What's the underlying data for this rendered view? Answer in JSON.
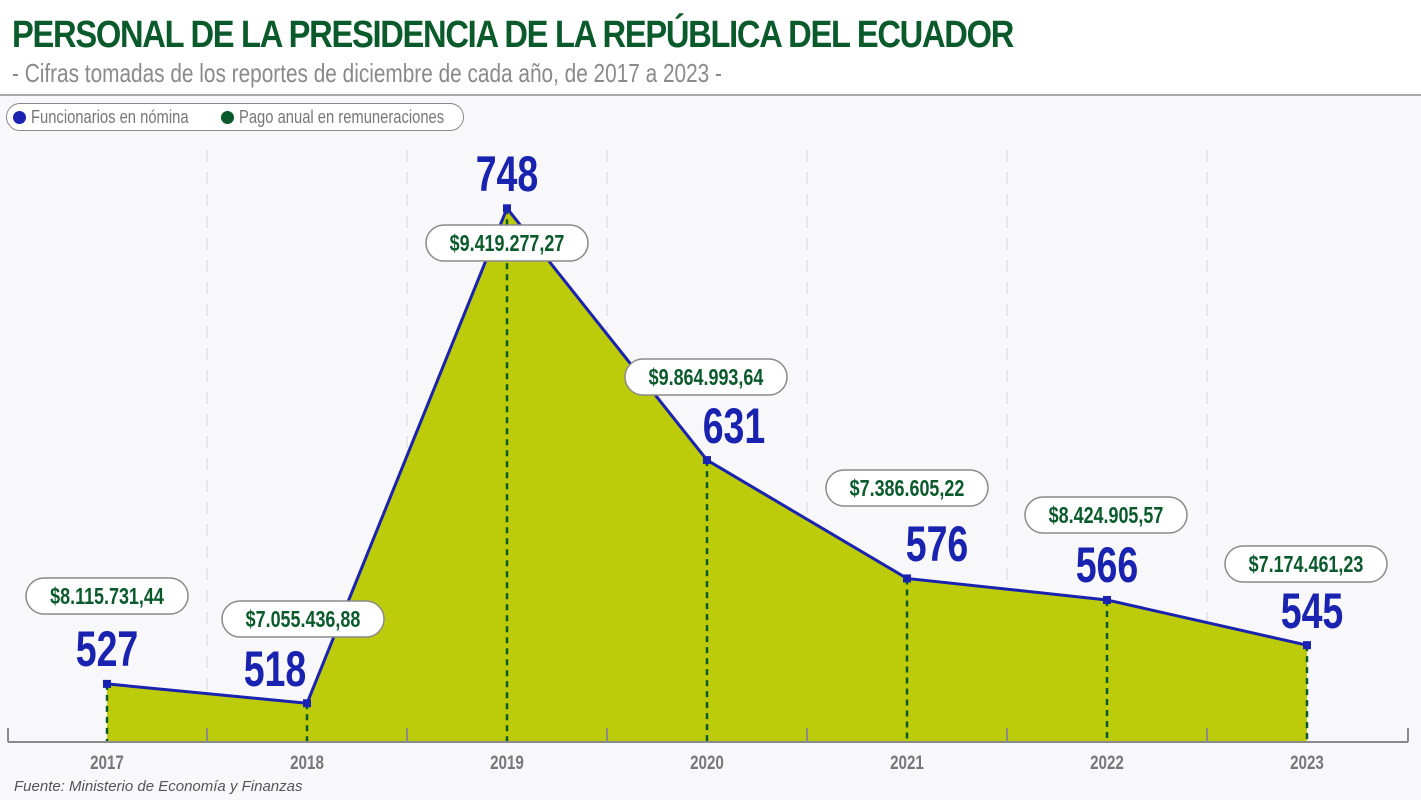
{
  "title": "PERSONAL DE LA PRESIDENCIA DE LA REPÚBLICA DEL ECUADOR",
  "subtitle": "- Cifras tomadas de los reportes de diciembre de cada año, de 2017 a 2023 -",
  "source": "Fuente: Ministerio de Economía y Finanzas",
  "colors": {
    "line": "#1a22b0",
    "area": "#bccc0a",
    "money": "#0b5a2c",
    "title": "#0b5a2c"
  },
  "chart_data": {
    "type": "area",
    "categories": [
      "2017",
      "2018",
      "2019",
      "2020",
      "2021",
      "2022",
      "2023"
    ],
    "series": [
      {
        "name": "Funcionarios en nómina",
        "values": [
          527,
          518,
          748,
          631,
          576,
          566,
          545
        ],
        "labels": [
          "527",
          "518",
          "748",
          "631",
          "576",
          "566",
          "545"
        ]
      },
      {
        "name": "Pago anual en remuneraciones",
        "values": [
          8115731.44,
          7055436.88,
          9419277.27,
          9864993.64,
          7386605.22,
          8424905.57,
          7174461.23
        ],
        "labels": [
          "$8.115.731,44",
          "$7.055.436,88",
          "$9.419.277,27",
          "$9.864.993,64",
          "$7.386.605,22",
          "$8.424.905,57",
          "$7.174.461,23"
        ]
      }
    ],
    "legend": "top-left",
    "grid": "vertical dashed",
    "ylim": [
      500,
      760
    ]
  }
}
